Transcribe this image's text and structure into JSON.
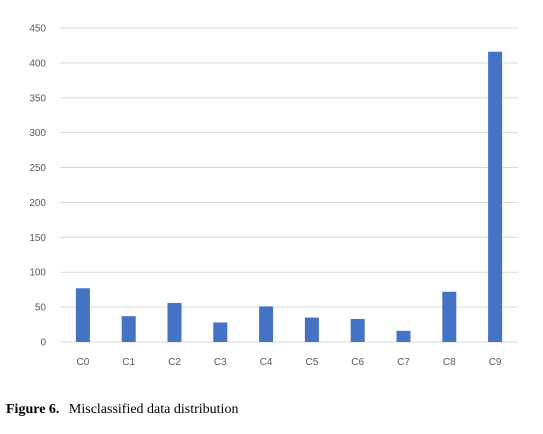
{
  "chart_data": {
    "type": "bar",
    "title": "",
    "xlabel": "",
    "ylabel": "",
    "categories": [
      "C0",
      "C1",
      "C2",
      "C3",
      "C4",
      "C5",
      "C6",
      "C7",
      "C8",
      "C9"
    ],
    "values": [
      77,
      37,
      56,
      28,
      51,
      35,
      33,
      16,
      72,
      416
    ],
    "ylim": [
      0,
      450
    ],
    "yticks": [
      0,
      50,
      100,
      150,
      200,
      250,
      300,
      350,
      400,
      450
    ],
    "grid": true,
    "legend": "none",
    "bar_color": "#4472C4",
    "grid_color": "#d9d9d9"
  },
  "caption": {
    "label": "Figure 6.",
    "text": "Misclassified data distribution"
  }
}
